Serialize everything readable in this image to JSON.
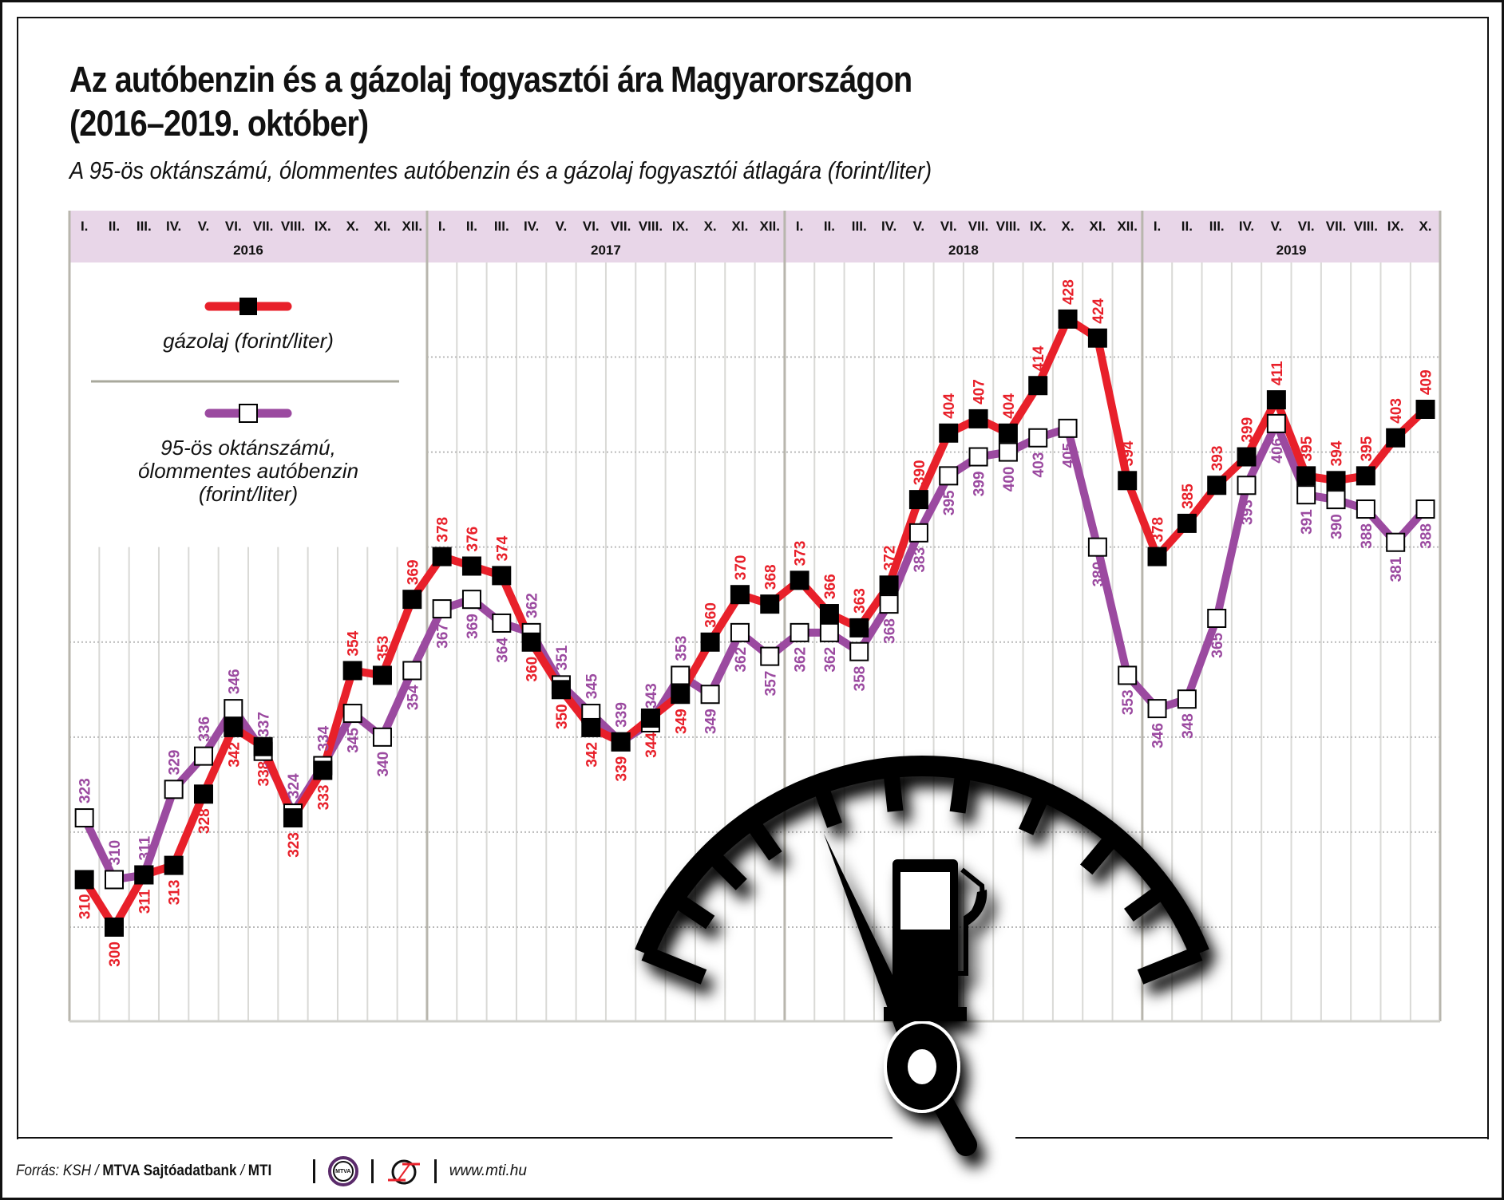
{
  "title_line1": "Az autóbenzin és a gázolaj fogyasztói ára Magyarországon",
  "title_line2": "(2016–2019. október)",
  "subtitle": "A 95-ös oktánszámú, ólommentes autóbenzin és a gázolaj fogyasztói átlagára (forint/liter)",
  "legend": {
    "diesel": "gázolaj (forint/liter)",
    "petrol_line1": "95-ös oktánszámú,",
    "petrol_line2": "ólommentes autóbenzin",
    "petrol_line3": "(forint/liter)"
  },
  "colors": {
    "diesel": "#e8202a",
    "petrol": "#9b4aa0",
    "header_bg": "#e8d6e8",
    "grid": "#d9d9d6"
  },
  "footer": {
    "source_prefix": "Forrás: KSH / ",
    "source_bold": "MTVA Sajtóadatbank",
    "source_sep": " / ",
    "source_bold2": "MTI",
    "logo_mtva": "MTVA",
    "url": "www.mti.hu"
  },
  "chart_data": {
    "type": "line",
    "title": "Az autóbenzin és a gázolaj fogyasztói ára Magyarországon (2016–2019. október)",
    "subtitle": "A 95-ös oktánszámú, ólommentes autóbenzin és a gázolaj fogyasztói átlagára (forint/liter)",
    "xlabel": "",
    "ylabel": "forint/liter",
    "ylim": [
      280,
      440
    ],
    "grid": true,
    "legend_position": "top-left",
    "years": [
      {
        "label": "2016",
        "months": [
          "I.",
          "II.",
          "III.",
          "IV.",
          "V.",
          "VI.",
          "VII.",
          "VIII.",
          "IX.",
          "X.",
          "XI.",
          "XII."
        ]
      },
      {
        "label": "2017",
        "months": [
          "I.",
          "II.",
          "III.",
          "IV.",
          "V.",
          "VI.",
          "VII.",
          "VIII.",
          "IX.",
          "X.",
          "XI.",
          "XII."
        ]
      },
      {
        "label": "2018",
        "months": [
          "I.",
          "II.",
          "III.",
          "IV.",
          "V.",
          "VI.",
          "VII.",
          "VIII.",
          "IX.",
          "X.",
          "XI.",
          "XII."
        ]
      },
      {
        "label": "2019",
        "months": [
          "I.",
          "II.",
          "III.",
          "IV.",
          "V.",
          "VI.",
          "VII.",
          "VIII.",
          "IX.",
          "X."
        ]
      }
    ],
    "series": [
      {
        "name": "gázolaj (forint/liter)",
        "values": [
          310,
          300,
          311,
          313,
          328,
          342,
          338,
          323,
          333,
          354,
          353,
          369,
          378,
          376,
          374,
          360,
          350,
          342,
          339,
          344,
          349,
          360,
          370,
          368,
          373,
          366,
          363,
          372,
          390,
          404,
          407,
          404,
          414,
          428,
          424,
          394,
          378,
          385,
          393,
          399,
          411,
          395,
          394,
          395,
          403,
          409
        ]
      },
      {
        "name": "95-ös oktánszámú, ólommentes autóbenzin (forint/liter)",
        "values": [
          323,
          310,
          311,
          329,
          336,
          346,
          337,
          324,
          334,
          345,
          340,
          354,
          367,
          369,
          364,
          362,
          351,
          345,
          339,
          343,
          353,
          349,
          362,
          357,
          362,
          362,
          358,
          368,
          383,
          395,
          399,
          400,
          403,
          405,
          380,
          353,
          346,
          348,
          365,
          393,
          406,
          391,
          390,
          388,
          381,
          388
        ]
      }
    ]
  }
}
